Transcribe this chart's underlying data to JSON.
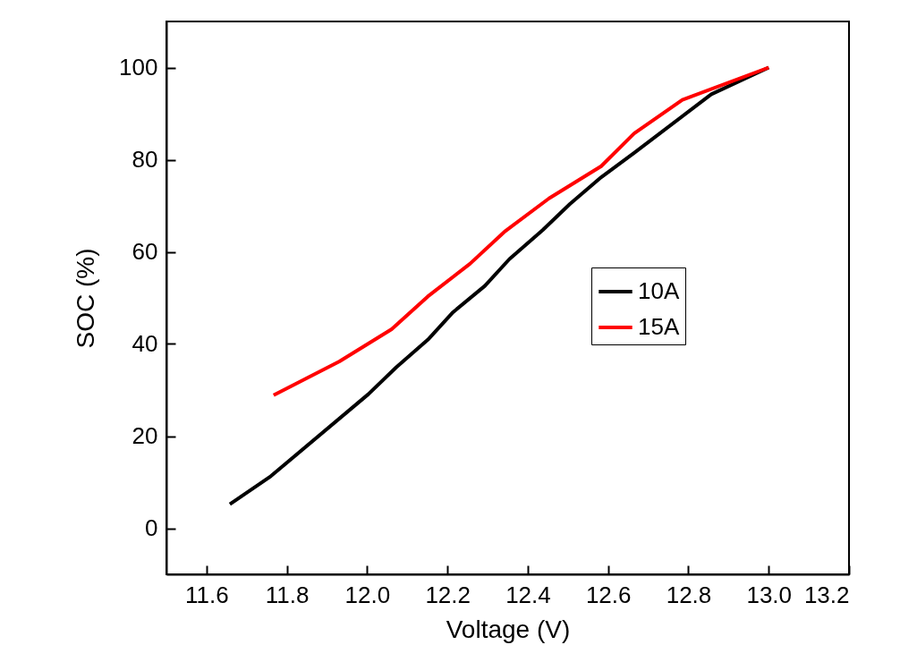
{
  "chart_data": {
    "type": "line",
    "xlabel": "Voltage (V)",
    "ylabel": "SOC (%)",
    "xlim": [
      11.5,
      13.2
    ],
    "xticks": [
      {
        "value": 11.6,
        "label": "11.6"
      },
      {
        "value": 11.8,
        "label": "11.8"
      },
      {
        "value": 12.0,
        "label": "12.0"
      },
      {
        "value": 12.2,
        "label": "12.2"
      },
      {
        "value": 12.4,
        "label": "12.4"
      },
      {
        "value": 12.6,
        "label": "12.6"
      },
      {
        "value": 12.8,
        "label": "12.8"
      },
      {
        "value": 13.0,
        "label": "13.0"
      },
      {
        "value": 13.2,
        "label": "13.2"
      }
    ],
    "ylim": [
      -10,
      110
    ],
    "yticks": [
      0,
      20,
      40,
      60,
      80,
      100
    ],
    "grid": false,
    "legend": "right",
    "line_style": "solid",
    "series": [
      {
        "name": "10A",
        "color": "#000000",
        "x": [
          11.658,
          11.76,
          12.003,
          12.072,
          12.151,
          12.214,
          12.293,
          12.354,
          12.437,
          12.505,
          12.583,
          12.665,
          12.857,
          13.0
        ],
        "values": [
          5.2,
          11.3,
          29.1,
          34.9,
          40.9,
          46.9,
          52.6,
          58.4,
          64.7,
          70.4,
          76.2,
          81.5,
          94.2,
          100
        ]
      },
      {
        "name": "15A",
        "color": "#ff0000",
        "x": [
          11.767,
          11.931,
          12.061,
          12.151,
          12.256,
          12.344,
          12.453,
          12.583,
          12.665,
          12.785,
          13.0
        ],
        "values": [
          28.9,
          36.2,
          43.2,
          50.3,
          57.4,
          64.5,
          71.6,
          78.6,
          85.7,
          93.0,
          100
        ]
      }
    ]
  }
}
